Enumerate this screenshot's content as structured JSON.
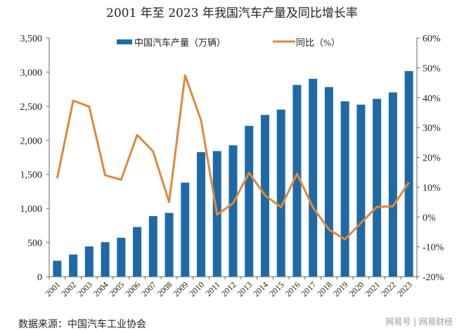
{
  "chart_data": {
    "type": "bar+line",
    "title": "2001 年至 2023 年我国汽车产量及同比增长率",
    "categories": [
      "2001",
      "2002",
      "2003",
      "2004",
      "2005",
      "2006",
      "2007",
      "2008",
      "2009",
      "2010",
      "2011",
      "2012",
      "2013",
      "2014",
      "2015",
      "2016",
      "2017",
      "2018",
      "2019",
      "2020",
      "2021",
      "2022",
      "2023"
    ],
    "series": [
      {
        "name": "中国汽车产量（万辆）",
        "type": "bar",
        "axis": "left",
        "color": "#1f6aa5",
        "values": [
          234,
          325,
          444,
          507,
          571,
          728,
          888,
          935,
          1379,
          1826,
          1842,
          1927,
          2212,
          2372,
          2450,
          2812,
          2902,
          2781,
          2572,
          2523,
          2608,
          2702,
          3016
        ]
      },
      {
        "name": "同比（%）",
        "type": "line",
        "axis": "right",
        "color": "#e0883a",
        "values": [
          13,
          39,
          37,
          14,
          12.5,
          27.5,
          22,
          5,
          47.5,
          32.4,
          0.8,
          4.6,
          14.8,
          7.3,
          3.3,
          14.5,
          3.2,
          -4.2,
          -7.5,
          -2,
          3.4,
          3.6,
          11.6
        ]
      }
    ],
    "left_axis": {
      "ylim": [
        0,
        3500
      ],
      "ticks": [
        "0",
        "500",
        "1,000",
        "1,500",
        "2,000",
        "2,500",
        "3,000",
        "3,500"
      ]
    },
    "right_axis": {
      "ylim": [
        -20,
        60
      ],
      "ticks": [
        "-20%",
        "-10%",
        "0%",
        "10%",
        "20%",
        "30%",
        "40%",
        "50%",
        "60%"
      ]
    },
    "legend": "top",
    "grid": false
  },
  "source": "数据来源：中国汽车工业协会",
  "watermark": "网易号 | 网易财经"
}
